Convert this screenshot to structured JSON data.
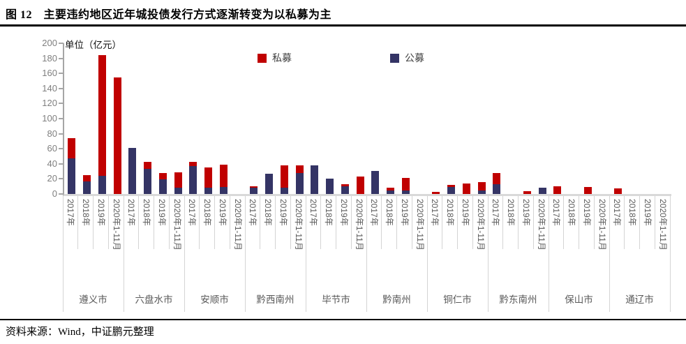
{
  "figure": {
    "title": "图 12　主要违约地区近年城投债发行方式逐渐转变为以私募为主",
    "source": "资料来源：Wind，中证鹏元整理"
  },
  "chart_data": {
    "type": "bar",
    "stacked": true,
    "unit_label": "单位（亿元）",
    "ylabel": "",
    "xlabel": "",
    "ylim": [
      0,
      200
    ],
    "ytick_step": 20,
    "yticks": [
      0,
      20,
      40,
      60,
      80,
      100,
      120,
      140,
      160,
      180,
      200
    ],
    "grid": false,
    "legend_position": "top-center",
    "years": [
      "2017年",
      "2018年",
      "2019年",
      "2020年1-11月"
    ],
    "series_meta": [
      {
        "name": "私募",
        "key": "private",
        "color": "#C00000"
      },
      {
        "name": "公募",
        "key": "public",
        "color": "#343465"
      }
    ],
    "groups": [
      {
        "name": "遵义市",
        "public": [
          47,
          17,
          24,
          0
        ],
        "private": [
          27,
          8,
          160,
          155
        ]
      },
      {
        "name": "六盘水市",
        "public": [
          61,
          33,
          19,
          8
        ],
        "private": [
          0,
          10,
          9,
          21
        ]
      },
      {
        "name": "安顺市",
        "public": [
          37,
          8,
          9,
          0
        ],
        "private": [
          6,
          27,
          30,
          0
        ]
      },
      {
        "name": "黔西南州",
        "public": [
          8,
          27,
          8,
          28
        ],
        "private": [
          2,
          0,
          30,
          10
        ]
      },
      {
        "name": "毕节市",
        "public": [
          38,
          20,
          10,
          0
        ],
        "private": [
          0,
          0,
          3,
          23
        ]
      },
      {
        "name": "黔南州",
        "public": [
          31,
          5,
          5,
          0
        ],
        "private": [
          0,
          3,
          16,
          0
        ]
      },
      {
        "name": "铜仁市",
        "public": [
          0,
          9,
          0,
          5
        ],
        "private": [
          3,
          3,
          14,
          11
        ]
      },
      {
        "name": "黔东南州",
        "public": [
          13,
          0,
          0,
          8
        ],
        "private": [
          15,
          0,
          4,
          0
        ]
      },
      {
        "name": "保山市",
        "public": [
          0,
          0,
          0,
          0
        ],
        "private": [
          10,
          0,
          9,
          0
        ]
      },
      {
        "name": "通辽市",
        "public": [
          0,
          0,
          0,
          0
        ],
        "private": [
          7,
          0,
          0,
          0
        ]
      }
    ],
    "style_colors": {
      "private_red": "#C00000",
      "public_navy": "#343465",
      "axis_line": "#A6A6A6",
      "baseline": "#D9D9D9",
      "tick_label_gray": "#7F7F7F",
      "category_label_gray": "#595959"
    }
  }
}
